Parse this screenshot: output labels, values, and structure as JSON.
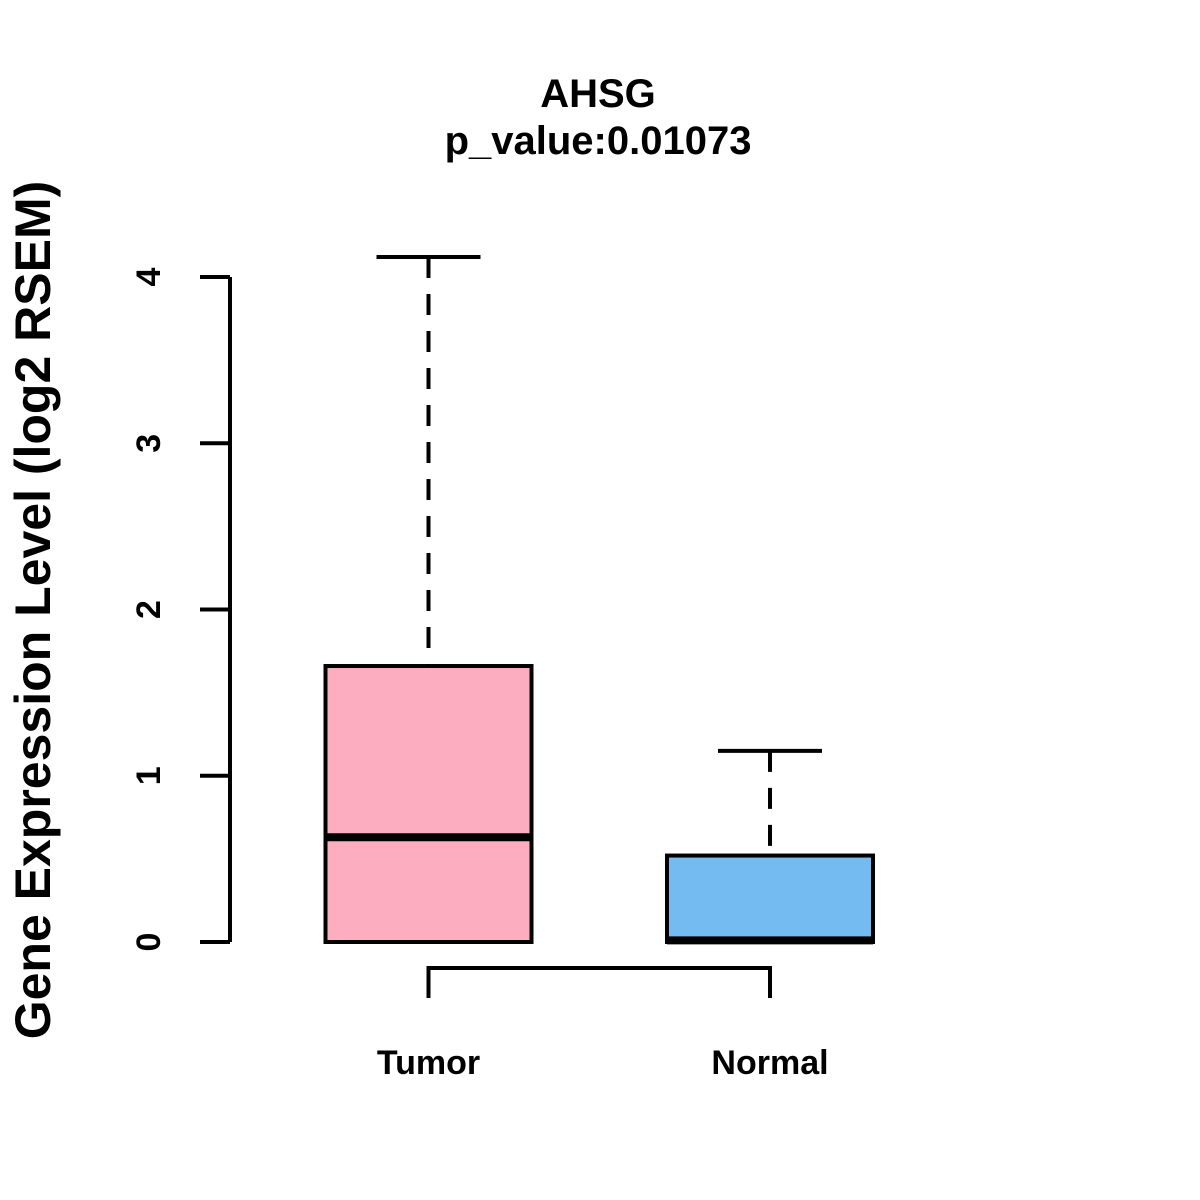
{
  "title": "AHSG",
  "subtitle": "p_value:0.01073",
  "chart_data": {
    "type": "boxplot",
    "title": "AHSG",
    "subtitle": "p_value:0.01073",
    "ylabel": "Gene Expression Level (log2 RSEM)",
    "ylim": [
      0,
      4.2
    ],
    "yticks": [
      0,
      1,
      2,
      3,
      4
    ],
    "legend_position": "none",
    "grid": false,
    "categories": [
      "Tumor",
      "Normal"
    ],
    "groups": [
      {
        "label": "Tumor",
        "color": "#FCAEC0",
        "whisker_low": 0,
        "q1": 0,
        "median": 0.63,
        "q3": 1.66,
        "whisker_high": 4.12
      },
      {
        "label": "Normal",
        "color": "#74BBF2",
        "whisker_low": 0,
        "q1": 0,
        "median": 0.01,
        "q3": 0.52,
        "whisker_high": 1.15
      }
    ],
    "colors": {
      "stroke": "#000000",
      "tumor_fill": "#FCAEC0",
      "normal_fill": "#74BBF2"
    }
  }
}
